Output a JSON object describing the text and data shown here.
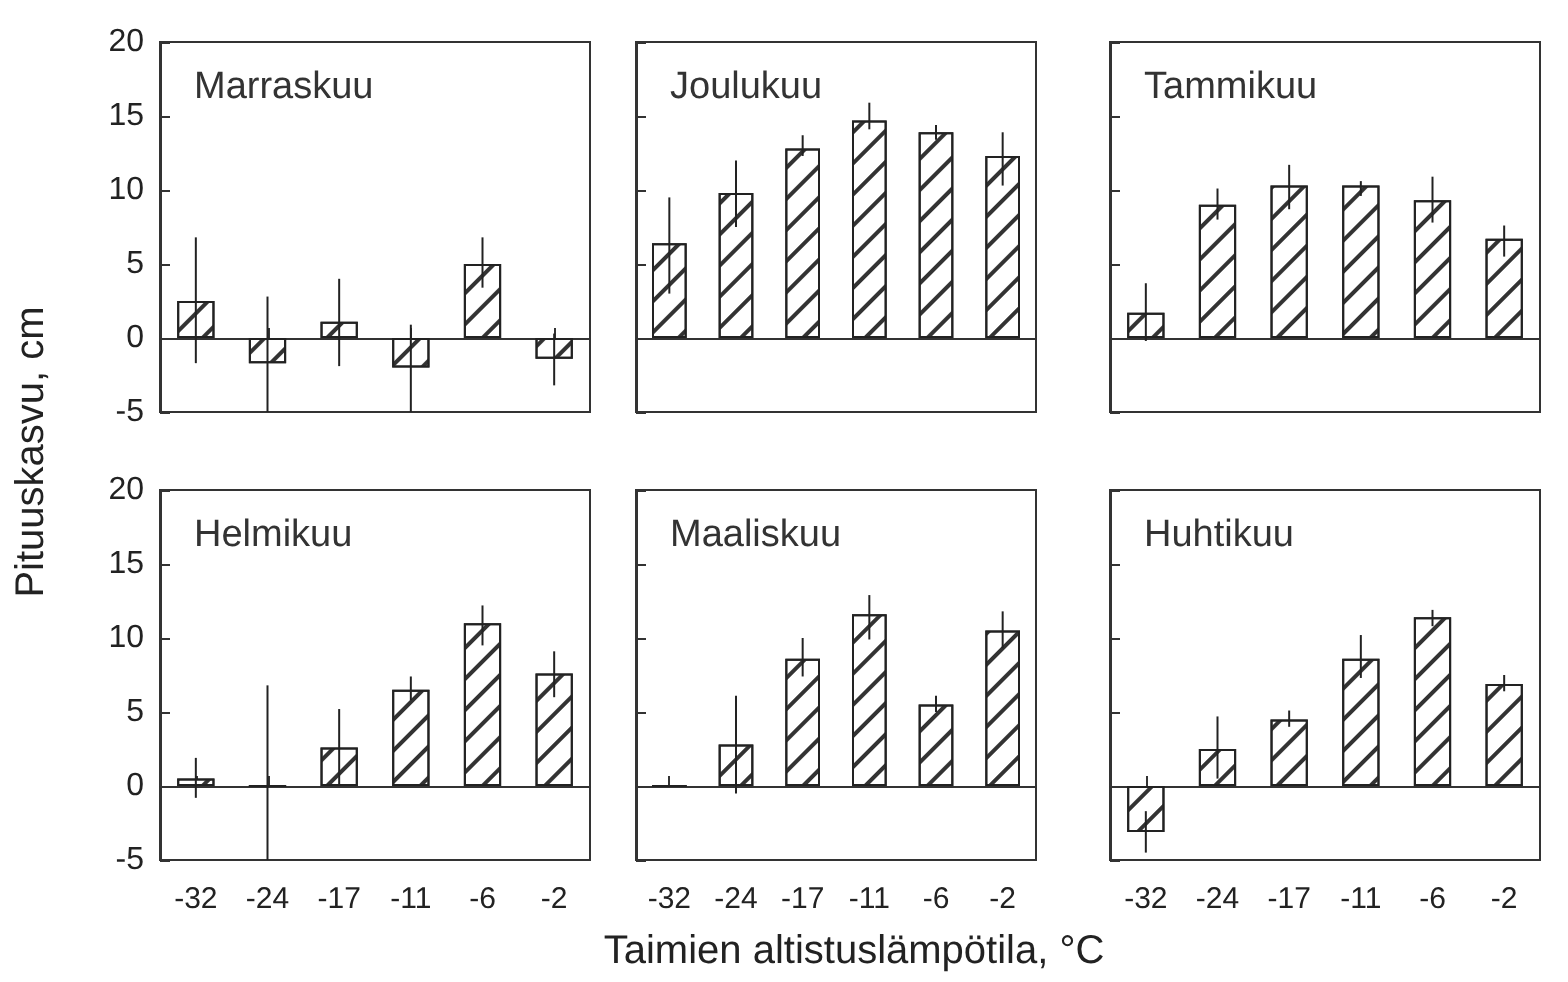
{
  "chart_data": [
    {
      "type": "bar",
      "title": "Marraskuu",
      "categories": [
        "-32",
        "-24",
        "-17",
        "-11",
        "-6",
        "-2"
      ],
      "values": [
        2.5,
        -1.7,
        1.1,
        -2.0,
        5.0,
        -1.4
      ],
      "errors": [
        [
          -1.7,
          6.8
        ],
        [
          -5,
          2.8
        ],
        [
          -1.9,
          4.0
        ],
        [
          -5,
          0.9
        ],
        [
          3.4,
          6.8
        ],
        [
          -3.2,
          0.3
        ]
      ],
      "ylim": [
        -5,
        20
      ],
      "yticks": [
        -5,
        0,
        5,
        10,
        15,
        20
      ],
      "tick_labels": "y"
    },
    {
      "type": "bar",
      "title": "Joulukuu",
      "categories": [
        "-32",
        "-24",
        "-17",
        "-11",
        "-6",
        "-2"
      ],
      "values": [
        6.4,
        9.8,
        12.8,
        14.7,
        13.9,
        12.3
      ],
      "errors": [
        [
          3.0,
          9.5
        ],
        [
          7.5,
          12.0
        ],
        [
          12.3,
          13.7
        ],
        [
          14.1,
          15.9
        ],
        [
          13.4,
          14.4
        ],
        [
          10.3,
          13.9
        ]
      ],
      "ylim": [
        -5,
        20
      ],
      "yticks": [
        -5,
        0,
        5,
        10,
        15,
        20
      ],
      "tick_labels": false
    },
    {
      "type": "bar",
      "title": "Tammikuu",
      "categories": [
        "-32",
        "-24",
        "-17",
        "-11",
        "-6",
        "-2"
      ],
      "values": [
        1.7,
        9.0,
        10.3,
        10.3,
        9.3,
        6.7
      ],
      "errors": [
        [
          -0.2,
          3.7
        ],
        [
          8.0,
          10.1
        ],
        [
          8.7,
          11.7
        ],
        [
          9.6,
          10.6
        ],
        [
          7.8,
          10.9
        ],
        [
          5.5,
          7.6
        ]
      ],
      "ylim": [
        -5,
        20
      ],
      "yticks": [
        -5,
        0,
        5,
        10,
        15,
        20
      ],
      "tick_labels": false
    },
    {
      "type": "bar",
      "title": "Helmikuu",
      "ylabel": "Pituuskasvu, cm",
      "categories": [
        "-32",
        "-24",
        "-17",
        "-11",
        "-6",
        "-2"
      ],
      "values": [
        0.5,
        0,
        2.6,
        6.5,
        11.0,
        7.6
      ],
      "errors": [
        [
          -0.8,
          1.9
        ],
        [
          -5,
          6.8
        ],
        [
          0,
          5.2
        ],
        [
          5.8,
          7.4
        ],
        [
          9.5,
          12.2
        ],
        [
          6.0,
          9.1
        ]
      ],
      "ylim": [
        -5,
        20
      ],
      "yticks": [
        -5,
        0,
        5,
        10,
        15,
        20
      ]
    },
    {
      "type": "bar",
      "title": "Maaliskuu",
      "xlabel": "Taimien altistuslämpötila, °C",
      "categories": [
        "-32",
        "-24",
        "-17",
        "-11",
        "-6",
        "-2"
      ],
      "values": [
        0,
        2.8,
        8.6,
        11.6,
        5.5,
        10.5
      ],
      "errors": [
        null,
        [
          -0.5,
          6.1
        ],
        [
          7.4,
          10.0
        ],
        [
          9.9,
          12.9
        ],
        [
          5.0,
          6.1
        ],
        [
          9.3,
          11.8
        ]
      ],
      "ylim": [
        -5,
        20
      ],
      "yticks": [
        -5,
        0,
        5,
        10,
        15,
        20
      ],
      "tick_labels": "x"
    },
    {
      "type": "bar",
      "title": "Huhtikuu",
      "categories": [
        "-32",
        "-24",
        "-17",
        "-11",
        "-6",
        "-2"
      ],
      "values": [
        -3.1,
        2.5,
        4.5,
        8.6,
        11.4,
        6.9
      ],
      "errors": [
        [
          -4.5,
          -1.7
        ],
        [
          0.5,
          4.7
        ],
        [
          4.0,
          5.1
        ],
        [
          7.3,
          10.2
        ],
        [
          10.8,
          11.9
        ],
        [
          6.4,
          7.5
        ]
      ],
      "ylim": [
        -5,
        20
      ],
      "yticks": [
        -5,
        0,
        5,
        10,
        15,
        20
      ],
      "tick_labels": "x"
    }
  ]
}
